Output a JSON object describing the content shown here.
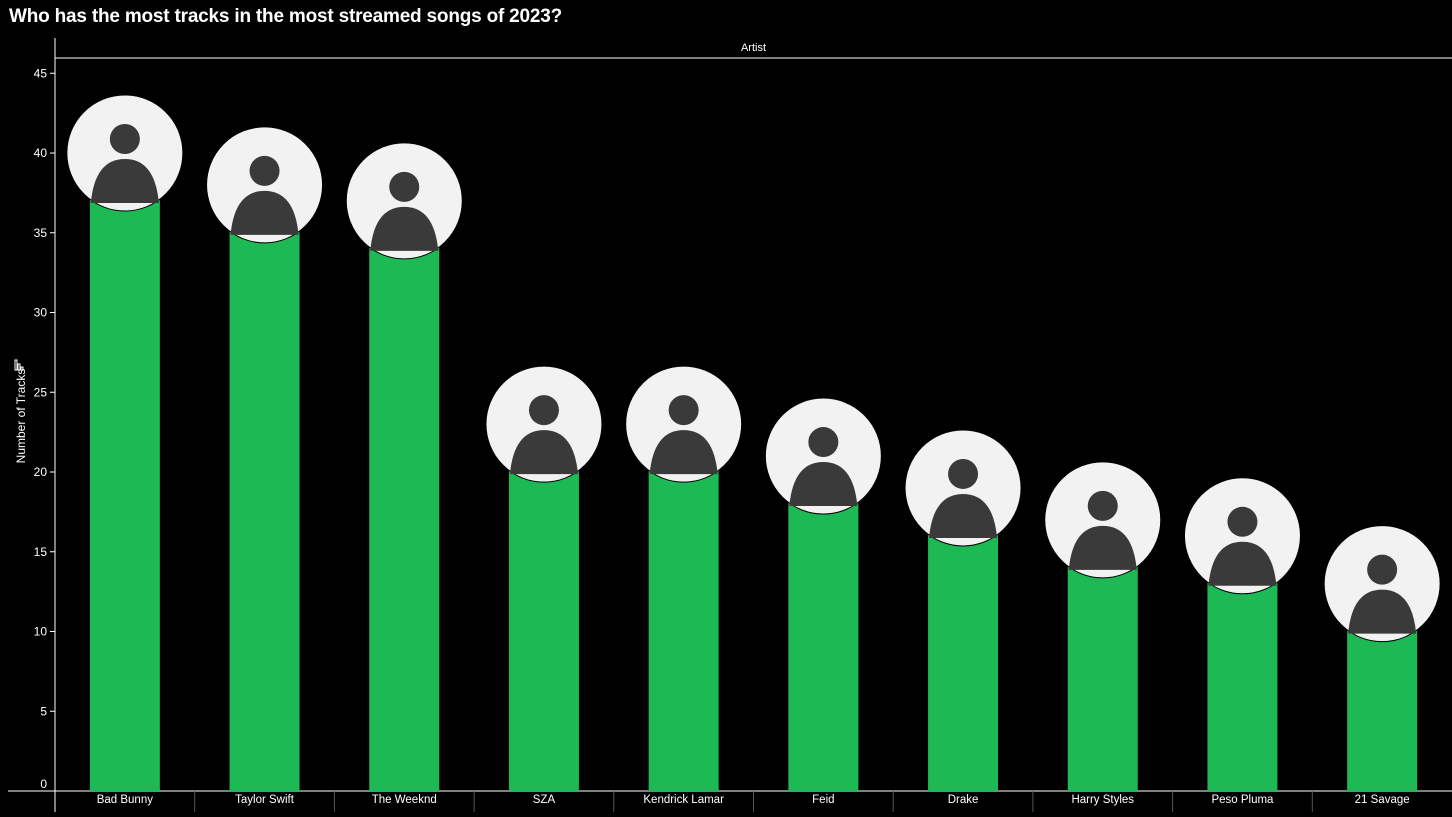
{
  "title": "Who has the most tracks in the most streamed songs of 2023?",
  "chart_data": {
    "type": "bar",
    "column_header": "Artist",
    "ylabel": "Number of Tracks",
    "ylim": [
      0,
      46
    ],
    "yticks": [
      0,
      5,
      10,
      15,
      20,
      25,
      30,
      35,
      40,
      45
    ],
    "categories": [
      "Bad Bunny",
      "Taylor Swift",
      "The Weeknd",
      "SZA",
      "Kendrick Lamar",
      "Feid",
      "Drake",
      "Harry Styles",
      "Peso Pluma",
      "21 Savage"
    ],
    "values": [
      40,
      38,
      37,
      23,
      23,
      21,
      19,
      17,
      16,
      13
    ],
    "marker": "artist-portrait-circle",
    "grid": false,
    "legend": "none"
  },
  "colors": {
    "background": "#000000",
    "bar": "#1DB954",
    "axis": "#ffffff",
    "portrait_bg": "#f2f2f2"
  }
}
